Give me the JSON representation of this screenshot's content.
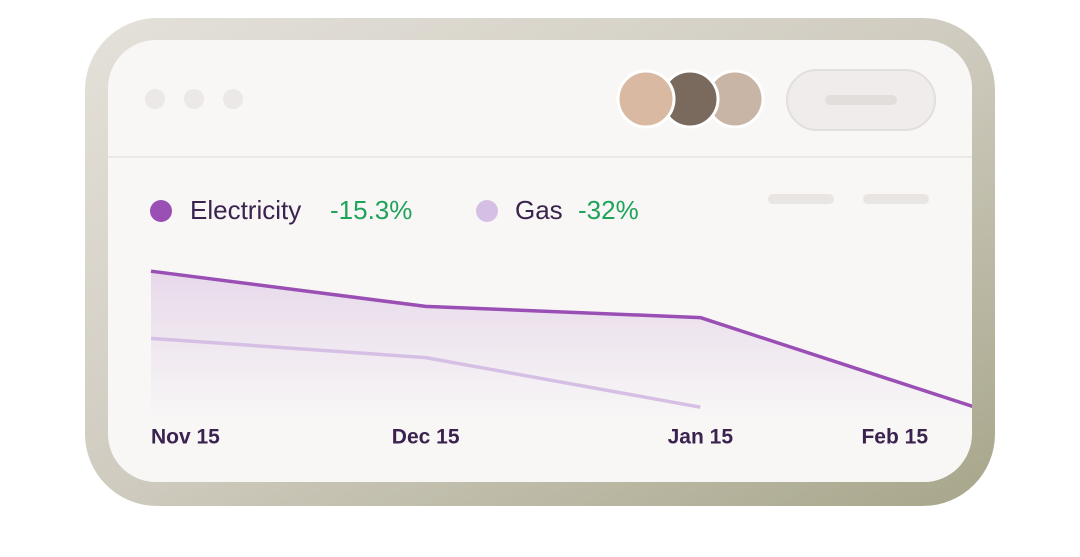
{
  "chart_data": {
    "type": "line",
    "categories": [
      "Nov 15",
      "Dec 15",
      "Jan 15",
      "Feb 15"
    ],
    "ylim": [
      0,
      100
    ],
    "series": [
      {
        "name": "Electricity",
        "change": "-15.3%",
        "color": "#9a4fb5",
        "values": [
          93,
          71,
          64,
          8
        ]
      },
      {
        "name": "Gas",
        "change": "-32%",
        "color": "#d6bfe4",
        "values": [
          51,
          39,
          8,
          null
        ]
      }
    ]
  }
}
